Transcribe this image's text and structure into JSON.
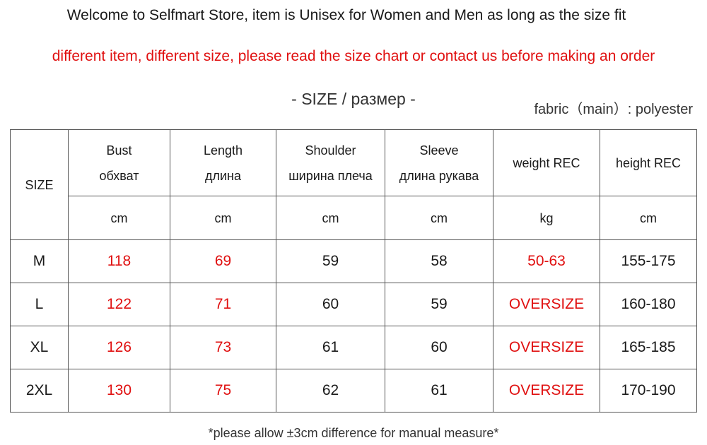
{
  "header": {
    "welcome": "Welcome to Selfmart Store, item is Unisex for Women and Men as long as the size fit",
    "notice": "different item, different size,  please read the size chart or contact us before making an order"
  },
  "size_title": "- SIZE / размер -",
  "fabric": "fabric（main）: polyester",
  "table": {
    "size_header": "SIZE",
    "columns": [
      {
        "name": "Bust",
        "name_ru": "обхват",
        "unit": "cm"
      },
      {
        "name": "Length",
        "name_ru": "длина",
        "unit": "cm"
      },
      {
        "name": "Shoulder",
        "name_ru": "ширина плеча",
        "unit": "cm"
      },
      {
        "name": "Sleeve",
        "name_ru": "длина рукава",
        "unit": "cm"
      },
      {
        "name": "weight REC",
        "unit": "kg"
      },
      {
        "name": "height REC",
        "unit": "cm"
      }
    ],
    "rows": [
      [
        "M",
        118,
        69,
        59,
        58,
        "50-63",
        "155-175"
      ],
      [
        "L",
        122,
        71,
        60,
        59,
        "OVERSIZE",
        "160-180"
      ],
      [
        "XL",
        126,
        73,
        61,
        60,
        "OVERSIZE",
        "165-185"
      ],
      [
        "2XL",
        130,
        75,
        62,
        61,
        "OVERSIZE",
        "170-190"
      ]
    ]
  },
  "footnote": "*please allow ±3cm difference for manual measure*"
}
